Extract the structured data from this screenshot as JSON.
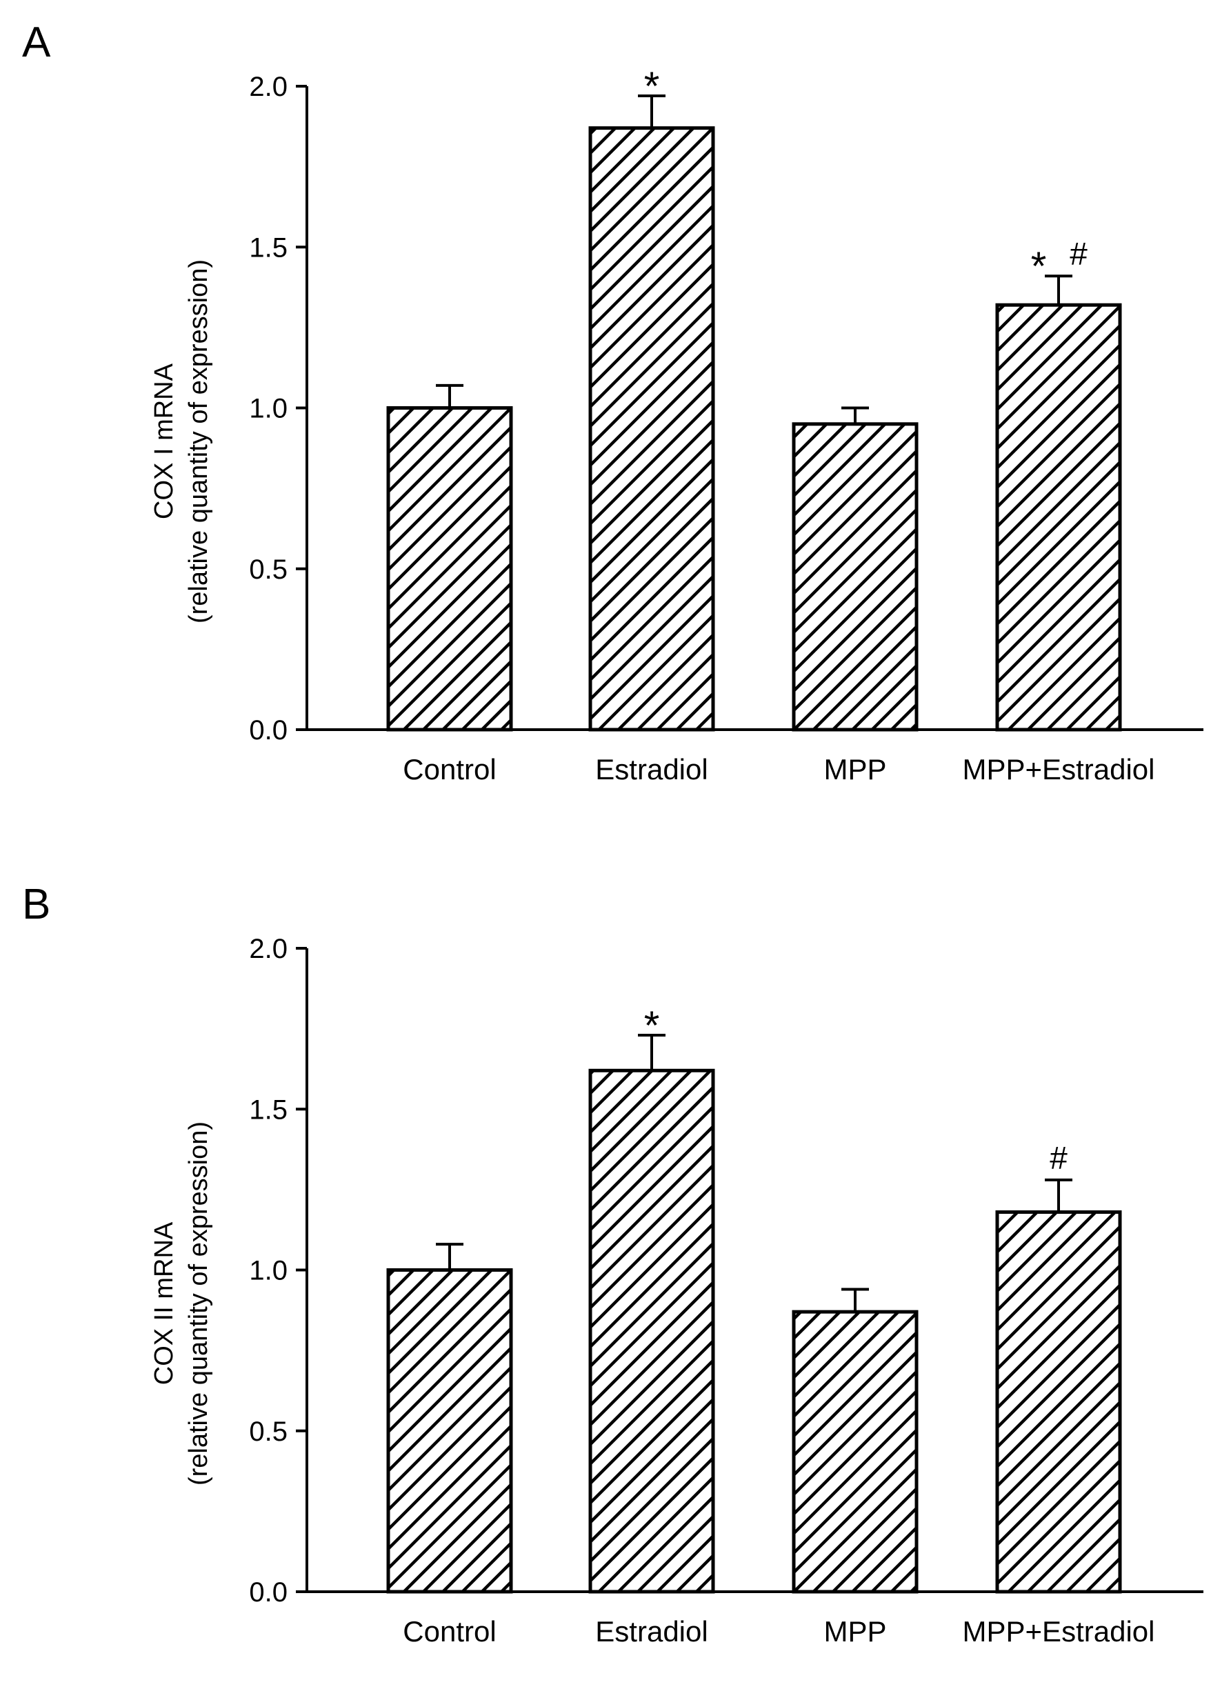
{
  "chart_data": [
    {
      "panel": "A",
      "type": "bar",
      "title": "",
      "ylabel_line1": "COX I mRNA",
      "ylabel_line2": "(relative quantity of expression)",
      "xlabel": "",
      "categories": [
        "Control",
        "Estradiol",
        "MPP",
        "MPP+Estradiol"
      ],
      "values": [
        1.0,
        1.87,
        0.95,
        1.32
      ],
      "errors": [
        0.07,
        0.1,
        0.05,
        0.09
      ],
      "annotations": [
        {
          "index": 1,
          "symbols": [
            "*"
          ]
        },
        {
          "index": 3,
          "symbols": [
            "*",
            "#"
          ]
        }
      ],
      "ylim": [
        0.0,
        2.0
      ],
      "yticks": [
        "0.0",
        "0.5",
        "1.0",
        "1.5",
        "2.0"
      ],
      "fill_pattern": "diagonal-hatch",
      "grid": false,
      "legend": "none"
    },
    {
      "panel": "B",
      "type": "bar",
      "title": "",
      "ylabel_line1": "COX II mRNA",
      "ylabel_line2": "(relative quantity of expression)",
      "xlabel": "",
      "categories": [
        "Control",
        "Estradiol",
        "MPP",
        "MPP+Estradiol"
      ],
      "values": [
        1.0,
        1.62,
        0.87,
        1.18
      ],
      "errors": [
        0.08,
        0.11,
        0.07,
        0.1
      ],
      "annotations": [
        {
          "index": 1,
          "symbols": [
            "*"
          ]
        },
        {
          "index": 3,
          "symbols": [
            "#"
          ]
        }
      ],
      "ylim": [
        0.0,
        2.0
      ],
      "yticks": [
        "0.0",
        "0.5",
        "1.0",
        "1.5",
        "2.0"
      ],
      "fill_pattern": "diagonal-hatch",
      "grid": false,
      "legend": "none"
    }
  ],
  "colors": {
    "ink": "#000000",
    "background": "#ffffff"
  }
}
